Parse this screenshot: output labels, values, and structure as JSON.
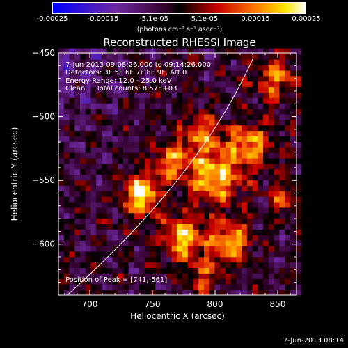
{
  "colorbar": {
    "ticks": [
      "-0.00025",
      "-0.00015",
      "-5.1e-05",
      "5.1e-05",
      "0.00015",
      "0.00025"
    ],
    "units": "(photons cm⁻² s⁻¹ asec⁻²)",
    "vmin": -0.00025,
    "vmax": 0.00025
  },
  "chart_data": {
    "type": "heatmap",
    "title": "Reconstructed RHESSI Image",
    "xlabel": "Heliocentric X (arcsec)",
    "ylabel": "Heliocentric Y (arcsec)",
    "xlim": [
      675,
      865
    ],
    "ylim": [
      -640,
      -450
    ],
    "x_ticks": [
      700,
      750,
      800,
      850
    ],
    "y_ticks": [
      -450,
      -500,
      -550,
      -600
    ],
    "annotations": [
      "7-Jun-2013 09:08:26.000 to 09:14:26.000",
      "Detectors: 3F 5F 6F 7F 8F 9F, Att 0",
      "Energy Range: 12.0 - 25.0 keV",
      "Clean     Total counts: 8.57E+03"
    ],
    "peak_label": "Position of Peak = [741,-561]",
    "peak": [
      741,
      -561
    ],
    "sources": [
      {
        "x": 741,
        "y": -561,
        "amp": 1.0,
        "sigma": 10
      },
      {
        "x": 800,
        "y": -548,
        "amp": 0.85,
        "sigma": 14
      },
      {
        "x": 828,
        "y": -522,
        "amp": 0.7,
        "sigma": 12
      },
      {
        "x": 775,
        "y": -595,
        "amp": 0.8,
        "sigma": 12
      },
      {
        "x": 812,
        "y": -598,
        "amp": 0.75,
        "sigma": 11
      },
      {
        "x": 790,
        "y": -515,
        "amp": 0.55,
        "sigma": 12
      },
      {
        "x": 765,
        "y": -535,
        "amp": 0.6,
        "sigma": 11
      },
      {
        "x": 848,
        "y": -470,
        "amp": 0.55,
        "sigma": 12
      },
      {
        "x": 790,
        "y": -625,
        "amp": 0.45,
        "sigma": 9
      },
      {
        "x": 855,
        "y": -565,
        "amp": 0.45,
        "sigma": 9
      }
    ],
    "limb_curve": [
      [
        682,
        -640
      ],
      [
        750,
        -580
      ],
      [
        800,
        -520
      ],
      [
        830,
        -455
      ]
    ]
  },
  "footer": "7-Jun-2013 08:14"
}
